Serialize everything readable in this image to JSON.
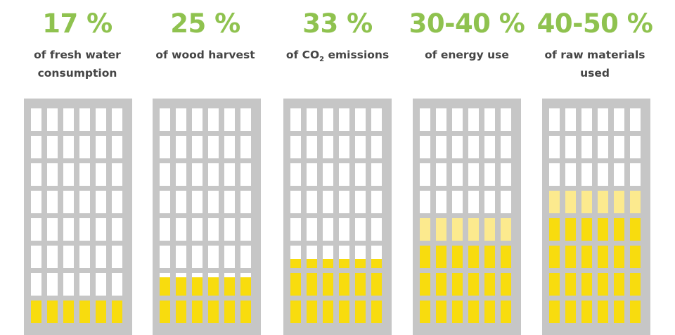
{
  "stats": [
    {
      "value": "17 %",
      "label": "of fresh water consumption",
      "full_rows": 1,
      "light_rows": 0,
      "partial_row_fraction": 0
    },
    {
      "value": "25 %",
      "label": "of wood harvest",
      "full_rows": 1,
      "light_rows": 0,
      "partial_row_fraction": 0.8
    },
    {
      "value": "33 %",
      "label_pre": "of CO",
      "label_sub": "2",
      "label_post": " emissions",
      "full_rows": 2,
      "light_rows": 0,
      "partial_row_fraction": 0.4
    },
    {
      "value": "30-40 %",
      "label": "of energy use",
      "full_rows": 3,
      "light_rows": 1,
      "partial_row_fraction": 0
    },
    {
      "value": "40-50 %",
      "label": "of raw materials used",
      "full_rows": 4,
      "light_rows": 1,
      "partial_row_fraction": 0
    }
  ],
  "colors": {
    "value_text": "#8fc24f",
    "label_text": "#454545",
    "building": "#c6c6c6",
    "window": "#ffffff",
    "fill": "#f8dc0e",
    "fill_light": "#fcea8e"
  }
}
